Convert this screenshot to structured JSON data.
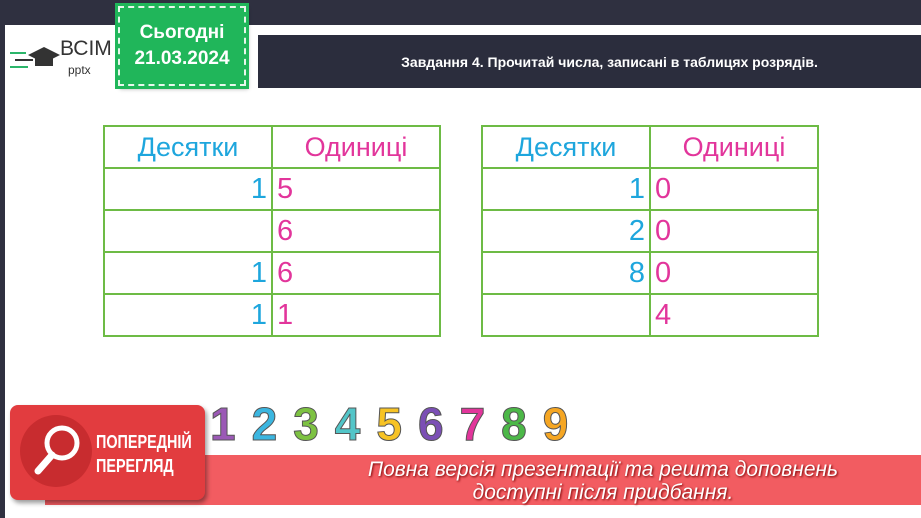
{
  "logo": {
    "name": "ВСІМ",
    "sub": "pptx"
  },
  "date": {
    "label": "Сьогодні",
    "value": "21.03.2024"
  },
  "title": "Завдання 4. Прочитай числа, записані в таблицях розрядів.",
  "tables": [
    {
      "headers": [
        "Десятки",
        "Одиниці"
      ],
      "rows": [
        [
          "1",
          "5"
        ],
        [
          "",
          "6"
        ],
        [
          "1",
          "6"
        ],
        [
          "1",
          "1"
        ]
      ]
    },
    {
      "headers": [
        "Десятки",
        "Одиниці"
      ],
      "rows": [
        [
          "1",
          "0"
        ],
        [
          "2",
          "0"
        ],
        [
          "8",
          "0"
        ],
        [
          "",
          "4"
        ]
      ]
    }
  ],
  "illustration_numbers": [
    "1",
    "2",
    "3",
    "4",
    "5",
    "6",
    "7",
    "8",
    "9"
  ],
  "preview": {
    "label1": "ПОПЕРЕДНІЙ",
    "label2": "ПЕРЕГЛЯД",
    "icon": "magnifier-icon"
  },
  "banner": {
    "line1": "Повна версія презентації та решта доповнень",
    "line2": "доступні після придбання."
  },
  "colors": {
    "tens": "#1ea6dd",
    "ones": "#e2359b",
    "grid": "#6dbb45",
    "date_bg": "#20b65a",
    "banner": "#f0464b"
  }
}
